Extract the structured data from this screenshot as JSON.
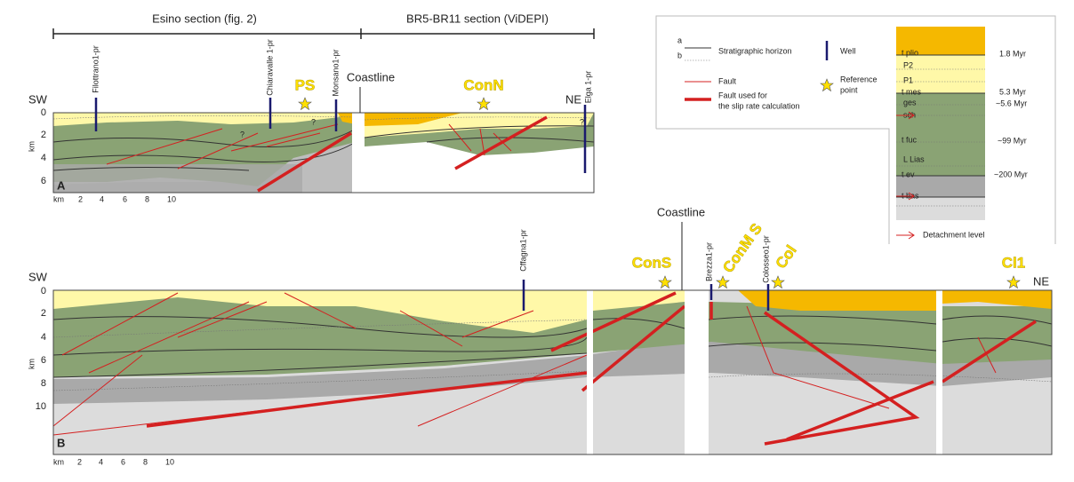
{
  "panel_a": {
    "headers": [
      "Esino section (fig. 2)",
      "BR5-BR11 section (ViDEPI)"
    ],
    "sw": "SW",
    "ne": "NE",
    "coastline": "Coastline",
    "points": [
      "PS",
      "ConN"
    ],
    "wells": [
      "Filottrano1-pr",
      "Chiaravalle 1-pr",
      "Monsano1-pr",
      "Elga 1-pr"
    ],
    "depth_unit": "km",
    "depth_labels": [
      "0",
      "2",
      "4",
      "6"
    ],
    "letter": "A",
    "x_unit": "km",
    "x_labels": [
      "2",
      "4",
      "6",
      "8",
      "10"
    ],
    "question": "?"
  },
  "panel_b": {
    "sw": "SW",
    "ne": "NE",
    "coastline": "Coastline",
    "points": [
      "ConS",
      "ConM S",
      "Col",
      "Cl1"
    ],
    "wells": [
      "Cffagna1-pr",
      "Brezza1-pr",
      "Colosseo1-pr"
    ],
    "depth_unit": "km",
    "depth_labels": [
      "0",
      "2",
      "4",
      "6",
      "8",
      "10"
    ],
    "letter": "B",
    "x_unit": "km",
    "x_labels": [
      "2",
      "4",
      "6",
      "8",
      "10"
    ]
  },
  "legend": {
    "a": "a",
    "b": "b",
    "horizon": "Stratigraphic horizon",
    "well": "Well",
    "fault": "Fault",
    "fault_slip": [
      "Fault used for",
      "the slip rate calculation"
    ],
    "reference": [
      "Reference",
      "point"
    ],
    "units": [
      "t plio",
      "P2",
      "P1",
      "t mes",
      "ges",
      "sch",
      "t fuc",
      "L Lias",
      "t ev",
      "t bas"
    ],
    "ages": [
      "1.8 Myr",
      "5.3 Myr",
      "~5.6 Myr",
      "~99 Myr",
      "~200 Myr"
    ],
    "detachment": "Detachment level"
  }
}
